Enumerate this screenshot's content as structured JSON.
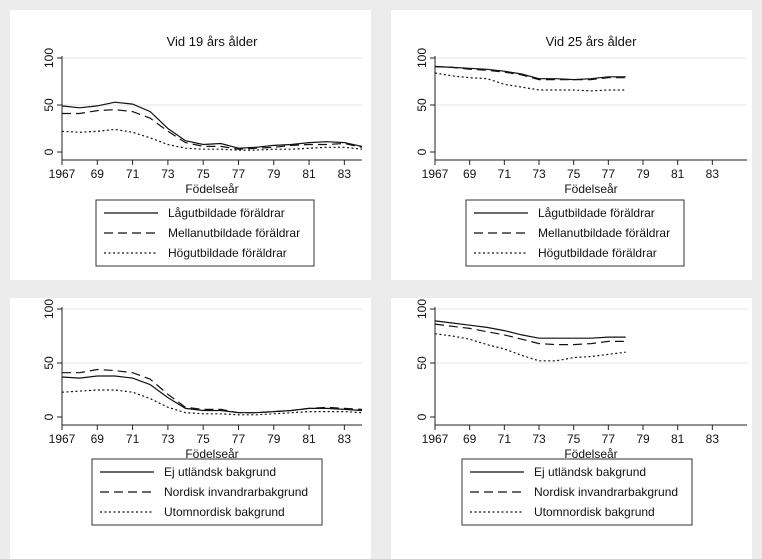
{
  "figure": {
    "xlabel": "Födelseår",
    "legend_groups": [
      [
        "Lågutbildade föräldrar",
        "Mellanutbildade föräldrar",
        "Högutbildade föräldrar"
      ],
      [
        "Ej utländsk bakgrund",
        "Nordisk invandrarbakgrund",
        "Utomnordisk bakgrund"
      ]
    ]
  },
  "chart_data": [
    {
      "type": "line",
      "title": "Vid 19 års ålder",
      "xlabel": "Födelseår",
      "ylabel": "",
      "xlim": [
        1967,
        1984
      ],
      "ylim": [
        0,
        100
      ],
      "x_ticks": [
        "1967",
        "69",
        "71",
        "73",
        "75",
        "77",
        "79",
        "81",
        "83"
      ],
      "y_ticks": [
        "0",
        "50",
        "100"
      ],
      "grid": "horizontal",
      "legend_position": "bottom",
      "x": [
        1967,
        1968,
        1969,
        1970,
        1971,
        1972,
        1973,
        1974,
        1975,
        1976,
        1977,
        1978,
        1979,
        1980,
        1981,
        1982,
        1983,
        1984
      ],
      "series": [
        {
          "name": "Lågutbildade föräldrar",
          "style": "solid",
          "values": [
            49,
            47,
            49,
            53,
            51,
            43,
            25,
            12,
            8,
            9,
            4,
            5,
            7,
            8,
            10,
            11,
            10,
            6
          ]
        },
        {
          "name": "Mellanutbildade föräldrar",
          "style": "dashed",
          "values": [
            41,
            41,
            44,
            45,
            43,
            36,
            22,
            10,
            6,
            6,
            3,
            4,
            5,
            7,
            8,
            8,
            9,
            5
          ]
        },
        {
          "name": "Högutbildade föräldrar",
          "style": "dotted",
          "values": [
            22,
            21,
            22,
            24,
            21,
            15,
            8,
            4,
            3,
            3,
            2,
            2,
            3,
            3,
            4,
            5,
            5,
            3
          ]
        }
      ]
    },
    {
      "type": "line",
      "title": "Vid 25 års ålder",
      "xlabel": "Födelseår",
      "ylabel": "",
      "xlim": [
        1967,
        1985
      ],
      "ylim": [
        0,
        100
      ],
      "x_ticks": [
        "1967",
        "69",
        "71",
        "73",
        "75",
        "77",
        "79",
        "81",
        "83"
      ],
      "y_ticks": [
        "0",
        "50",
        "100"
      ],
      "grid": "horizontal",
      "legend_position": "bottom",
      "x": [
        1967,
        1968,
        1969,
        1970,
        1971,
        1972,
        1973,
        1974,
        1975,
        1976,
        1977,
        1978
      ],
      "series": [
        {
          "name": "Lågutbildade föräldrar",
          "style": "solid",
          "values": [
            91,
            90,
            89,
            88,
            86,
            83,
            78,
            78,
            77,
            78,
            80,
            80
          ]
        },
        {
          "name": "Mellanutbildade föräldrar",
          "style": "dashed",
          "values": [
            91,
            90,
            88,
            87,
            85,
            82,
            77,
            77,
            77,
            77,
            79,
            79
          ]
        },
        {
          "name": "Högutbildade föräldrar",
          "style": "dotted",
          "values": [
            84,
            81,
            79,
            78,
            72,
            69,
            66,
            66,
            66,
            65,
            66,
            66
          ]
        }
      ]
    },
    {
      "type": "line",
      "title": "",
      "xlabel": "Födelseår",
      "ylabel": "",
      "xlim": [
        1967,
        1984
      ],
      "ylim": [
        0,
        100
      ],
      "x_ticks": [
        "1967",
        "69",
        "71",
        "73",
        "75",
        "77",
        "79",
        "81",
        "83"
      ],
      "y_ticks": [
        "0",
        "50",
        "100"
      ],
      "grid": "horizontal",
      "legend_position": "bottom",
      "x": [
        1967,
        1968,
        1969,
        1970,
        1971,
        1972,
        1973,
        1974,
        1975,
        1976,
        1977,
        1978,
        1979,
        1980,
        1981,
        1982,
        1983,
        1984
      ],
      "series": [
        {
          "name": "Ej utländsk bakgrund",
          "style": "solid",
          "values": [
            37,
            36,
            38,
            38,
            36,
            30,
            18,
            8,
            6,
            6,
            4,
            4,
            5,
            6,
            8,
            8,
            7,
            6
          ]
        },
        {
          "name": "Nordisk invandrarbakgrund",
          "style": "dashed",
          "values": [
            41,
            41,
            44,
            43,
            41,
            35,
            21,
            9,
            7,
            7,
            4,
            4,
            5,
            6,
            8,
            9,
            8,
            7
          ]
        },
        {
          "name": "Utomnordisk bakgrund",
          "style": "dotted",
          "values": [
            23,
            24,
            25,
            25,
            23,
            17,
            9,
            4,
            3,
            3,
            2,
            2,
            3,
            4,
            5,
            5,
            5,
            4
          ]
        }
      ]
    },
    {
      "type": "line",
      "title": "",
      "xlabel": "Födelseår",
      "ylabel": "",
      "xlim": [
        1967,
        1985
      ],
      "ylim": [
        0,
        100
      ],
      "x_ticks": [
        "1967",
        "69",
        "71",
        "73",
        "75",
        "77",
        "79",
        "81",
        "83"
      ],
      "y_ticks": [
        "0",
        "50",
        "100"
      ],
      "grid": "horizontal",
      "legend_position": "bottom",
      "x": [
        1967,
        1968,
        1969,
        1970,
        1971,
        1972,
        1973,
        1974,
        1975,
        1976,
        1977,
        1978
      ],
      "series": [
        {
          "name": "Ej utländsk bakgrund",
          "style": "solid",
          "values": [
            89,
            87,
            85,
            83,
            80,
            76,
            73,
            73,
            73,
            73,
            74,
            74
          ]
        },
        {
          "name": "Nordisk invandrarbakgrund",
          "style": "dashed",
          "values": [
            86,
            84,
            82,
            79,
            76,
            72,
            68,
            67,
            67,
            68,
            70,
            70
          ]
        },
        {
          "name": "Utomnordisk bakgrund",
          "style": "dotted",
          "values": [
            77,
            75,
            72,
            67,
            63,
            57,
            52,
            52,
            55,
            56,
            58,
            60
          ]
        }
      ]
    }
  ]
}
